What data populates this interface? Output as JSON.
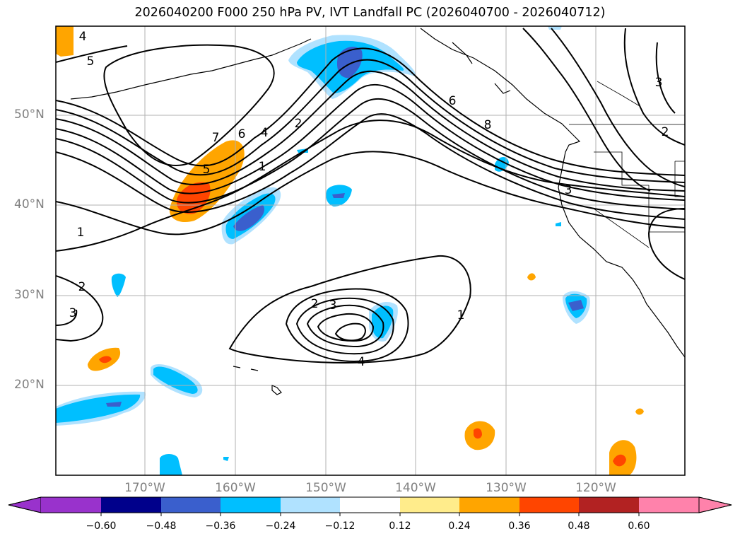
{
  "title": "2026040200 F000 250 hPa PV, IVT Landfall PC (2026040700 - 2026040712)",
  "lat_labels": [
    "50°N",
    "40°N",
    "30°N",
    "20°N"
  ],
  "lon_labels": [
    "170°W",
    "160°W",
    "150°W",
    "140°W",
    "130°W",
    "120°W"
  ],
  "colorbar": {
    "ticks": [
      "−0.60",
      "−0.48",
      "−0.36",
      "−0.24",
      "−0.12",
      "0.12",
      "0.24",
      "0.36",
      "0.48",
      "0.60"
    ],
    "colors": [
      "#9932cc",
      "#00008b",
      "#3a5fcd",
      "#00bfff",
      "#b0e2ff",
      "#ffffff",
      "#ffec8b",
      "#ffa500",
      "#ff4500",
      "#b22222",
      "#ff82ab"
    ]
  },
  "contour_labels": [
    "4",
    "5",
    "7",
    "6",
    "4",
    "2",
    "5",
    "1",
    "1",
    "2",
    "3",
    "2",
    "3",
    "1",
    "4",
    "6",
    "8",
    "3",
    "3",
    "2"
  ]
}
